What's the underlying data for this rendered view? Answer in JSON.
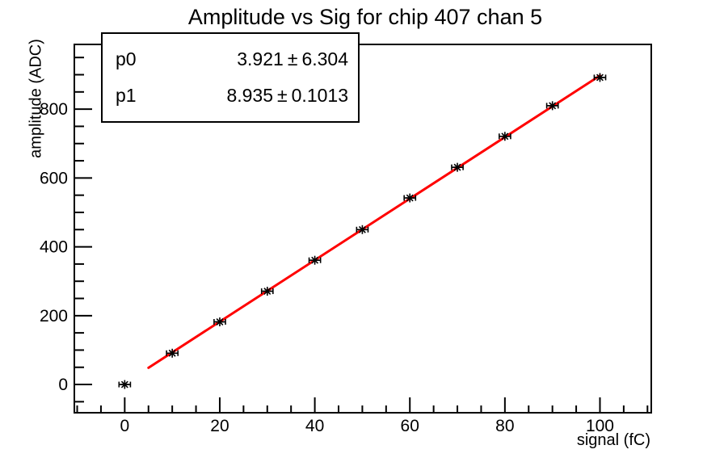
{
  "chart_data": {
    "type": "scatter",
    "title": "Amplitude vs Sig for chip 407 chan 5",
    "xlabel": "signal (fC)",
    "ylabel": "amplitude (ADC)",
    "xlim": [
      -10.6,
      110.8
    ],
    "ylim": [
      -82,
      988
    ],
    "grid": false,
    "legend_position": "none",
    "x_ticks": {
      "major": [
        0,
        20,
        40,
        60,
        80,
        100
      ],
      "minor_step": 5
    },
    "y_ticks": {
      "major": [
        0,
        200,
        400,
        600,
        800
      ],
      "minor_step": 50
    },
    "points": {
      "x": [
        0,
        10,
        20,
        30,
        40,
        50,
        60,
        70,
        80,
        90,
        100
      ],
      "y": [
        0,
        91,
        182,
        271,
        361,
        450,
        542,
        631,
        721,
        810,
        892
      ],
      "x_error": 1.2,
      "marker": "asterisk",
      "color": "#000000"
    },
    "fit_line": {
      "type": "linear",
      "p0": 3.921,
      "p1": 8.935,
      "x_start": 5,
      "x_end": 100,
      "color": "#ff0000"
    }
  },
  "stats_box": {
    "pm": "±",
    "rows": [
      {
        "name": "p0",
        "value": "3.921",
        "error": "6.304"
      },
      {
        "name": "p1",
        "value": "8.935",
        "error": "0.1013"
      }
    ]
  },
  "colors": {
    "background": "#ffffff",
    "frame": "#000000",
    "marker": "#000000",
    "fit_line": "#ff0000"
  }
}
